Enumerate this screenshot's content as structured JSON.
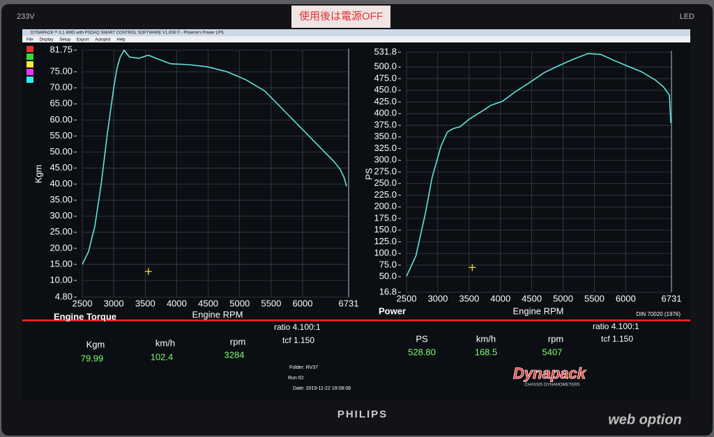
{
  "monitor": {
    "model": "233V",
    "panel": "LED",
    "brand": "PHILIPS",
    "sticker": "使用後は電源OFF"
  },
  "window": {
    "title": "DYNAPACK™ 3.1 4WD with PSDAQ SMART CONTROL SOFTWARE V1.008 © - Phoenix's Power LPS",
    "menu": [
      "File",
      "Display",
      "Setup",
      "Export",
      "Autoplot",
      "Help"
    ]
  },
  "chart_data": [
    {
      "type": "line",
      "title": "Engine Torque",
      "x_label": "Engine RPM",
      "y_label": "Kgm",
      "color": "#5fe6dc",
      "grid": true,
      "x": [
        2500,
        2600,
        2700,
        2800,
        2900,
        3000,
        3050,
        3100,
        3165,
        3250,
        3400,
        3550,
        3700,
        3900,
        4200,
        4500,
        4800,
        5100,
        5400,
        5700,
        6000,
        6300,
        6500,
        6600,
        6660,
        6697
      ],
      "values": [
        15,
        19,
        27,
        40,
        56,
        70,
        76,
        79.5,
        81.7,
        79.6,
        79.2,
        80.2,
        79,
        77.5,
        77.2,
        76.5,
        75,
        72.5,
        69,
        63,
        57,
        51,
        47,
        44.5,
        42,
        39.3
      ],
      "xlim": [
        2500,
        6731
      ],
      "xticks": [
        2500,
        3000,
        3500,
        4000,
        4500,
        5000,
        5500,
        6000,
        6731
      ],
      "ylim": [
        4.8,
        81.75
      ],
      "yticks": [
        {
          "value": 4.8,
          "label": "4.80"
        },
        {
          "value": 10,
          "label": "10.00"
        },
        {
          "value": 15,
          "label": "15.00"
        },
        {
          "value": 20,
          "label": "20.00"
        },
        {
          "value": 25,
          "label": "25.00"
        },
        {
          "value": 30,
          "label": "30.00"
        },
        {
          "value": 35,
          "label": "35.00"
        },
        {
          "value": 40,
          "label": "40.00"
        },
        {
          "value": 45,
          "label": "45.00"
        },
        {
          "value": 50,
          "label": "50.00"
        },
        {
          "value": 55,
          "label": "55.00"
        },
        {
          "value": 60,
          "label": "60.00"
        },
        {
          "value": 65,
          "label": "65.00"
        },
        {
          "value": 70,
          "label": "70.00"
        },
        {
          "value": 75,
          "label": "75.00"
        },
        81.75
      ],
      "cursor": {
        "x": 3550,
        "y": 12.8
      }
    },
    {
      "type": "line",
      "title": "Power",
      "x_label": "Engine RPM",
      "y_label": "PS",
      "color": "#5fe6dc",
      "grid": true,
      "x": [
        2500,
        2650,
        2800,
        2911,
        3050,
        3150,
        3246,
        3357,
        3500,
        3691,
        3850,
        4025,
        4250,
        4470,
        4700,
        4916,
        5150,
        5400,
        5600,
        5800,
        6030,
        6250,
        6475,
        6600,
        6698,
        6720
      ],
      "values": [
        51,
        95,
        185,
        264,
        330,
        360,
        368,
        372,
        388,
        404,
        418,
        426,
        448,
        467,
        488,
        502,
        516,
        529,
        527,
        515,
        502,
        490,
        472,
        458,
        440,
        380
      ],
      "xlim": [
        2500,
        6731
      ],
      "xticks": [
        2500,
        3000,
        3500,
        4000,
        4500,
        5000,
        5500,
        6000,
        6731
      ],
      "ylim": [
        16.8,
        531.8
      ],
      "yticks": [
        16.8,
        {
          "value": 50,
          "label": "50.0"
        },
        {
          "value": 75,
          "label": "75.0"
        },
        {
          "value": 100,
          "label": "100.0"
        },
        {
          "value": 125,
          "label": "125.0"
        },
        {
          "value": 150,
          "label": "150.0"
        },
        {
          "value": 175,
          "label": "175.0"
        },
        {
          "value": 200,
          "label": "200.0"
        },
        {
          "value": 225,
          "label": "225.0"
        },
        {
          "value": 250,
          "label": "250.0"
        },
        {
          "value": 275,
          "label": "275.0"
        },
        {
          "value": 300,
          "label": "300.0"
        },
        {
          "value": 325,
          "label": "325.0"
        },
        {
          "value": 350,
          "label": "350.0"
        },
        {
          "value": 375,
          "label": "375.0"
        },
        {
          "value": 400,
          "label": "400.0"
        },
        {
          "value": 425,
          "label": "425.0"
        },
        {
          "value": 450,
          "label": "450.0"
        },
        {
          "value": 475,
          "label": "475.0"
        },
        {
          "value": 500,
          "label": "500.0"
        },
        531.8
      ],
      "cursor": {
        "x": 3550,
        "y": 70
      }
    }
  ],
  "readouts": [
    {
      "labels": [
        "Kgm",
        "km/h",
        "rpm"
      ],
      "values": [
        "79.99",
        "102.4",
        "3284"
      ],
      "ratio": "ratio  4.100:1",
      "tcf": "tcf  1.150"
    },
    {
      "labels": [
        "PS",
        "km/h",
        "rpm"
      ],
      "values": [
        "528.80",
        "168.5",
        "5407"
      ],
      "ratio": "ratio  4.100:1",
      "tcf": "tcf  1.150"
    }
  ],
  "run_info": {
    "folder": "Folder:   RV37",
    "run_id": "Run ID:",
    "date": "Date:   2019-11-22 19:08:08"
  },
  "standard": "DIN 70020 (1976)",
  "logo": {
    "name": "Dynapack",
    "tagline": "CHASSIS DYNAMOMETERS"
  },
  "watermark": "web option"
}
